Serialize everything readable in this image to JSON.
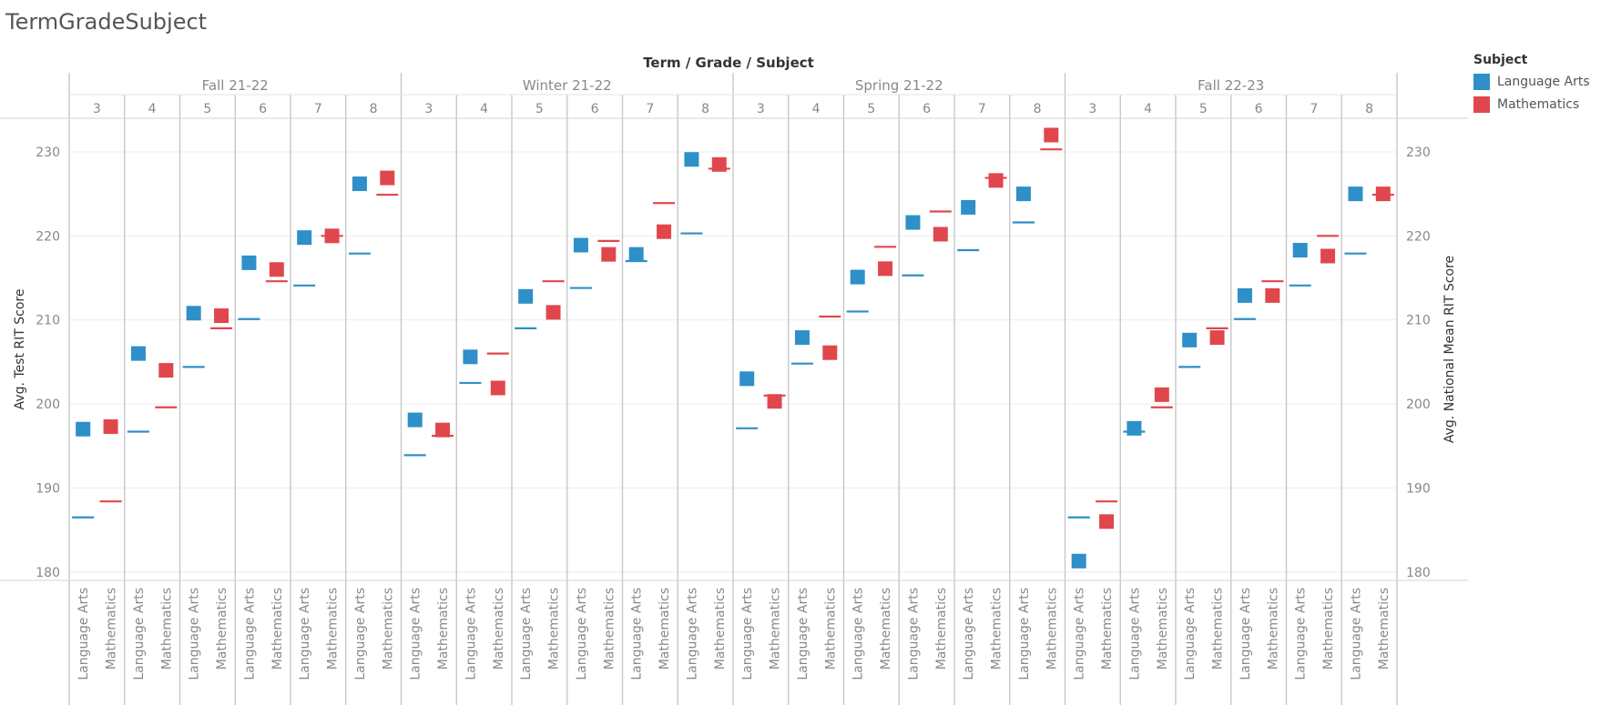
{
  "page": {
    "title": "TermGradeSubject"
  },
  "chart_data": {
    "type": "scatter",
    "title": "Term / Grade / Subject",
    "ylabel_left": "Avg. Test RIT Score",
    "ylabel_right": "Avg. National Mean RIT Score",
    "ylim": [
      179,
      234
    ],
    "yticks": [
      180,
      190,
      200,
      210,
      220,
      230
    ],
    "terms": [
      "Fall 21-22",
      "Winter 21-22",
      "Spring 21-22",
      "Fall 22-23"
    ],
    "grades": [
      "3",
      "4",
      "5",
      "6",
      "7",
      "8"
    ],
    "subjects": [
      "Language Arts",
      "Mathematics"
    ],
    "legend": {
      "title": "Subject",
      "items": [
        {
          "label": "Language Arts",
          "color": "#2e8fc9"
        },
        {
          "label": "Mathematics",
          "color": "#e0474c"
        }
      ]
    },
    "colors": {
      "Language Arts": "#2e8fc9",
      "Mathematics": "#e0474c"
    },
    "series": [
      {
        "name": "Avg. Test RIT Score",
        "mark": "square",
        "values": [
          [
            [
              197.0,
              197.3
            ],
            [
              206.0,
              204.0
            ],
            [
              210.8,
              210.5
            ],
            [
              216.8,
              216.0
            ],
            [
              219.8,
              220.0
            ],
            [
              226.2,
              226.9
            ]
          ],
          [
            [
              198.1,
              196.9
            ],
            [
              205.6,
              201.9
            ],
            [
              212.8,
              210.9
            ],
            [
              218.9,
              217.8
            ],
            [
              217.8,
              220.5
            ],
            [
              229.1,
              228.5
            ]
          ],
          [
            [
              203.0,
              200.3
            ],
            [
              207.9,
              206.1
            ],
            [
              215.1,
              216.1
            ],
            [
              221.6,
              220.2
            ],
            [
              223.4,
              226.6
            ],
            [
              225.0,
              232.0
            ]
          ],
          [
            [
              181.3,
              186.0
            ],
            [
              197.1,
              201.1
            ],
            [
              207.6,
              207.9
            ],
            [
              212.9,
              212.9
            ],
            [
              218.3,
              217.6
            ],
            [
              225.0,
              225.0
            ]
          ]
        ]
      },
      {
        "name": "Avg. National Mean RIT Score",
        "mark": "line",
        "values": [
          [
            [
              186.5,
              188.4
            ],
            [
              196.7,
              199.6
            ],
            [
              204.4,
              209.0
            ],
            [
              210.1,
              214.6
            ],
            [
              214.1,
              220.0
            ],
            [
              217.9,
              224.9
            ]
          ],
          [
            [
              193.9,
              196.2
            ],
            [
              202.5,
              206.0
            ],
            [
              209.0,
              214.6
            ],
            [
              213.8,
              219.4
            ],
            [
              217.0,
              223.9
            ],
            [
              220.3,
              228.0
            ]
          ],
          [
            [
              197.1,
              201.0
            ],
            [
              204.8,
              210.4
            ],
            [
              211.0,
              218.7
            ],
            [
              215.3,
              222.9
            ],
            [
              218.3,
              226.9
            ],
            [
              221.6,
              230.3
            ]
          ],
          [
            [
              186.5,
              188.4
            ],
            [
              196.7,
              199.6
            ],
            [
              204.4,
              209.0
            ],
            [
              210.1,
              214.6
            ],
            [
              214.1,
              220.0
            ],
            [
              217.9,
              224.9
            ]
          ]
        ]
      }
    ]
  }
}
